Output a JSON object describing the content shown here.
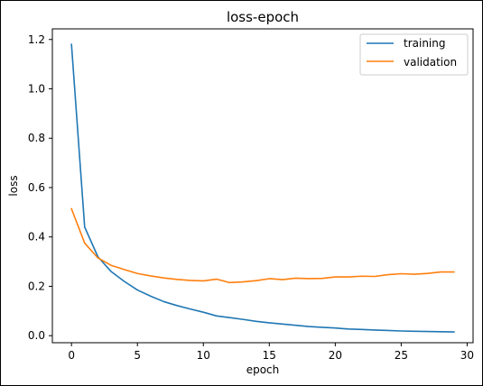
{
  "chart_data": {
    "type": "line",
    "title": "loss-epoch",
    "xlabel": "epoch",
    "ylabel": "loss",
    "xlim": [
      -1.45,
      30.45
    ],
    "ylim": [
      -0.0285,
      1.243
    ],
    "xticks": [
      0,
      5,
      10,
      15,
      20,
      25,
      30
    ],
    "yticks": [
      0.0,
      0.2,
      0.4,
      0.6,
      0.8,
      1.0,
      1.2
    ],
    "ytick_labels": [
      "0.0",
      "0.2",
      "0.4",
      "0.6",
      "0.8",
      "1.0",
      "1.2"
    ],
    "grid": false,
    "legend_position": "top-right",
    "x": [
      0,
      1,
      2,
      3,
      4,
      5,
      6,
      7,
      8,
      9,
      10,
      11,
      12,
      13,
      14,
      15,
      16,
      17,
      18,
      19,
      20,
      21,
      22,
      23,
      24,
      25,
      26,
      27,
      28,
      29
    ],
    "series": [
      {
        "name": "training",
        "color": "#1f77b4",
        "values": [
          1.18,
          0.44,
          0.32,
          0.26,
          0.22,
          0.185,
          0.16,
          0.138,
          0.122,
          0.108,
          0.095,
          0.08,
          0.073,
          0.066,
          0.058,
          0.052,
          0.047,
          0.042,
          0.037,
          0.034,
          0.031,
          0.027,
          0.025,
          0.023,
          0.021,
          0.019,
          0.018,
          0.017,
          0.016,
          0.015
        ]
      },
      {
        "name": "validation",
        "color": "#ff7f0e",
        "values": [
          0.514,
          0.375,
          0.315,
          0.285,
          0.268,
          0.252,
          0.242,
          0.234,
          0.228,
          0.224,
          0.222,
          0.229,
          0.215,
          0.218,
          0.223,
          0.231,
          0.227,
          0.233,
          0.231,
          0.232,
          0.238,
          0.238,
          0.241,
          0.24,
          0.247,
          0.251,
          0.249,
          0.252,
          0.258,
          0.258
        ]
      }
    ]
  }
}
